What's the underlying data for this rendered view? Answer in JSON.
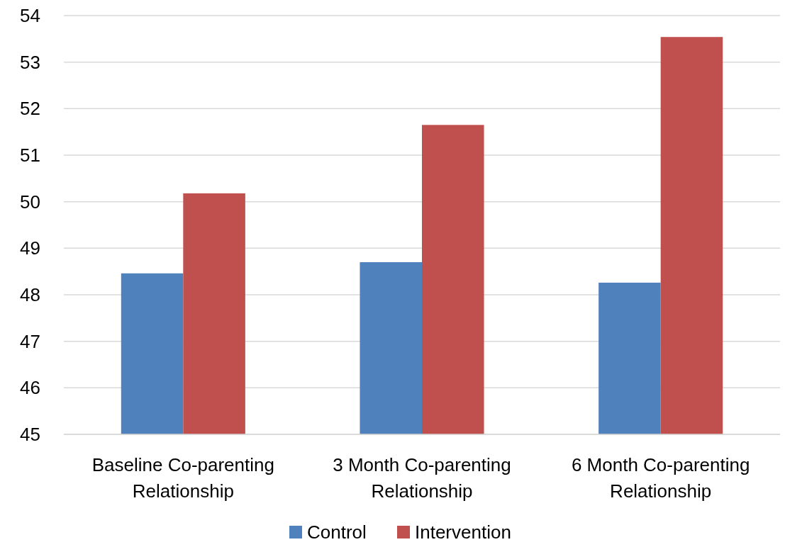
{
  "chart_data": {
    "type": "bar",
    "categories": [
      "Baseline Co-parenting Relationship",
      "3 Month Co-parenting Relationship",
      "6 Month Co-parenting Relationship"
    ],
    "series": [
      {
        "name": "Control",
        "color": "#4f81bd",
        "values": [
          48.46,
          48.7,
          48.26
        ]
      },
      {
        "name": "Intervention",
        "color": "#c0504d",
        "values": [
          50.18,
          51.65,
          53.54
        ]
      }
    ],
    "ylim": [
      45,
      54
    ],
    "yticks": [
      45,
      46,
      47,
      48,
      49,
      50,
      51,
      52,
      53,
      54
    ],
    "grid": "y",
    "legend": "bottom"
  }
}
